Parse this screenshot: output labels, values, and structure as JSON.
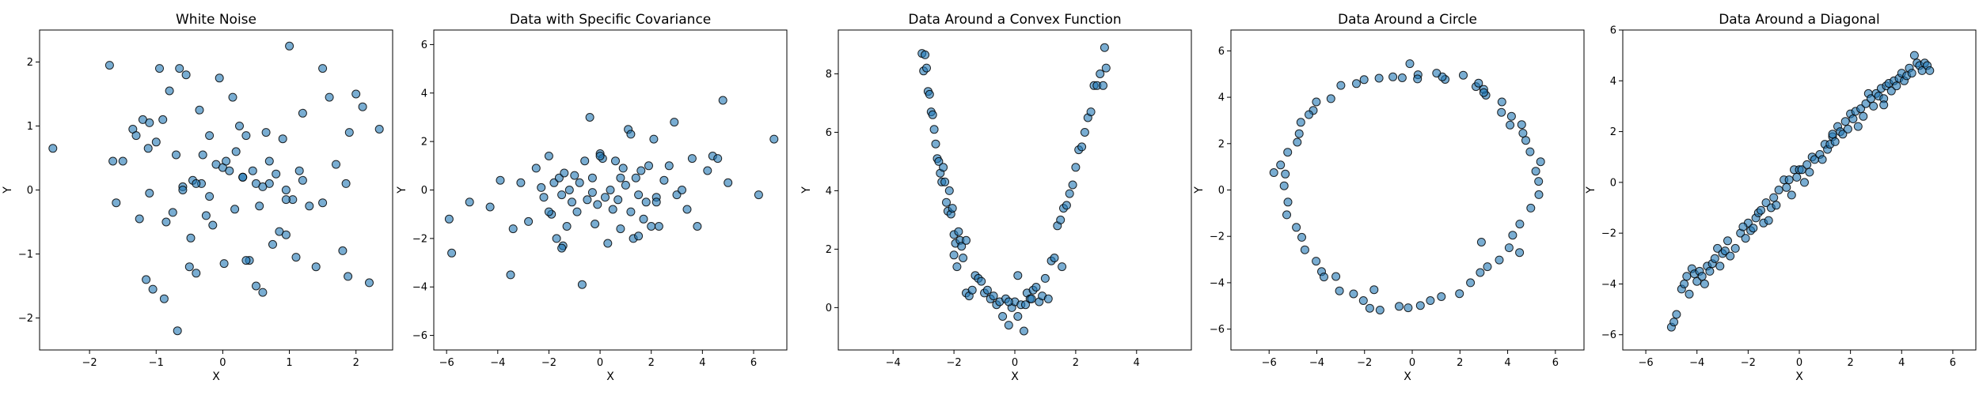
{
  "colors": {
    "marker_fill": "#1f77b4",
    "marker_edge": "#000000",
    "background": "#ffffff"
  },
  "chart_data": [
    {
      "type": "scatter",
      "title": "White Noise",
      "xlabel": "X",
      "ylabel": "Y",
      "xlim": [
        -2.75,
        2.55
      ],
      "ylim": [
        -2.5,
        2.5
      ],
      "xticks": [
        -2,
        -1,
        0,
        1,
        2
      ],
      "yticks": [
        -2,
        -1,
        0,
        1,
        2
      ],
      "x": [
        -2.55,
        -1.7,
        -1.65,
        -1.6,
        -1.5,
        -1.35,
        -1.3,
        -1.25,
        -1.2,
        -1.15,
        -1.12,
        -1.1,
        -1.05,
        -1.0,
        -0.95,
        -0.9,
        -0.88,
        -0.85,
        -0.8,
        -0.75,
        -0.7,
        -0.68,
        -0.65,
        -0.6,
        -0.55,
        -0.5,
        -0.48,
        -0.45,
        -0.4,
        -0.35,
        -0.32,
        -0.3,
        -0.25,
        -0.2,
        -0.15,
        -0.1,
        -0.05,
        0.0,
        0.02,
        0.05,
        0.1,
        0.15,
        0.18,
        0.2,
        0.25,
        0.3,
        0.35,
        0.4,
        0.45,
        0.5,
        0.55,
        0.6,
        0.65,
        0.7,
        0.75,
        0.8,
        0.85,
        0.9,
        0.95,
        1.0,
        1.05,
        1.1,
        1.15,
        1.2,
        1.3,
        1.4,
        1.5,
        1.6,
        1.7,
        1.8,
        1.9,
        2.0,
        2.1,
        2.2,
        2.35,
        0.95,
        1.88,
        1.2,
        0.5,
        -0.4,
        0.7,
        -1.1,
        0.35,
        1.5,
        -0.6,
        0.3,
        1.85,
        -0.2,
        0.95,
        0.6
      ],
      "y": [
        0.65,
        1.95,
        0.45,
        -0.2,
        0.45,
        0.95,
        0.85,
        -0.45,
        1.1,
        -1.4,
        0.65,
        1.05,
        -1.55,
        0.75,
        1.9,
        1.1,
        -1.7,
        -0.5,
        1.55,
        -0.35,
        0.55,
        -2.2,
        1.9,
        0.05,
        1.8,
        -1.2,
        -0.75,
        0.15,
        -1.3,
        1.25,
        0.1,
        0.55,
        -0.4,
        0.85,
        -0.55,
        0.4,
        1.75,
        0.35,
        -1.15,
        0.45,
        0.3,
        1.45,
        -0.3,
        0.6,
        1.0,
        0.2,
        0.85,
        -1.1,
        0.3,
        -1.5,
        -0.25,
        -1.6,
        0.9,
        0.1,
        -0.85,
        0.25,
        -0.65,
        0.8,
        0.0,
        2.25,
        -0.15,
        -1.05,
        0.3,
        1.2,
        -0.25,
        -1.2,
        1.9,
        1.45,
        0.4,
        -0.95,
        0.9,
        1.5,
        1.3,
        -1.45,
        0.95,
        -0.15,
        -1.35,
        0.15,
        0.1,
        0.1,
        0.45,
        -0.05,
        -1.1,
        -0.2,
        0.0,
        0.2,
        0.1,
        -0.1,
        -0.7,
        0.05
      ]
    },
    {
      "type": "scatter",
      "title": "Data with Specific Covariance",
      "xlabel": "X",
      "ylabel": "Y",
      "xlim": [
        -6.5,
        7.3
      ],
      "ylim": [
        -6.6,
        6.6
      ],
      "xticks": [
        -6,
        -4,
        -2,
        0,
        2,
        4,
        6
      ],
      "yticks": [
        -6,
        -4,
        -2,
        0,
        2,
        4,
        6
      ],
      "x": [
        -5.9,
        -5.8,
        -5.1,
        -4.3,
        -3.9,
        -3.5,
        -3.4,
        -3.1,
        -2.8,
        -2.5,
        -2.3,
        -2.2,
        -2.0,
        -1.9,
        -1.8,
        -1.7,
        -1.6,
        -1.5,
        -1.45,
        -1.4,
        -1.3,
        -1.2,
        -1.1,
        -1.0,
        -0.9,
        -0.8,
        -0.7,
        -0.6,
        -0.5,
        -0.4,
        -0.3,
        -0.2,
        -0.1,
        0.0,
        0.1,
        0.2,
        0.3,
        0.4,
        0.5,
        0.6,
        0.7,
        0.8,
        0.9,
        1.0,
        1.1,
        1.2,
        1.3,
        1.4,
        1.5,
        1.6,
        1.7,
        1.8,
        1.9,
        2.0,
        2.1,
        2.2,
        2.3,
        2.5,
        2.7,
        2.9,
        3.0,
        3.2,
        3.4,
        3.6,
        3.8,
        4.2,
        4.4,
        4.6,
        4.8,
        5.0,
        6.2,
        6.8,
        -1.5,
        0.0,
        1.2,
        2.2,
        -0.3,
        1.5,
        -2.0,
        0.8
      ],
      "y": [
        -1.2,
        -2.6,
        -0.5,
        -0.7,
        0.4,
        -3.5,
        -1.6,
        0.3,
        -1.3,
        0.9,
        0.1,
        -0.3,
        1.4,
        -1.0,
        0.3,
        -2.0,
        0.5,
        -0.2,
        -2.3,
        0.7,
        -1.5,
        0.0,
        -0.5,
        0.6,
        -0.9,
        0.3,
        -3.9,
        1.2,
        -0.4,
        3.0,
        0.5,
        -1.4,
        -0.6,
        1.5,
        1.3,
        -0.3,
        -2.2,
        0.0,
        -0.8,
        1.2,
        -0.4,
        -1.6,
        0.9,
        0.2,
        2.5,
        -0.9,
        -2.0,
        0.5,
        -0.2,
        0.8,
        -1.2,
        -0.5,
        1.0,
        -1.5,
        2.1,
        -0.3,
        -1.5,
        0.4,
        1.0,
        2.8,
        -0.2,
        0.0,
        -0.8,
        1.3,
        -1.5,
        0.8,
        1.4,
        1.3,
        3.7,
        0.3,
        -0.2,
        2.1,
        -2.4,
        1.4,
        2.3,
        -0.5,
        -0.1,
        -1.9,
        -0.9,
        0.5
      ]
    },
    {
      "type": "scatter",
      "title": "Data Around a Convex Function",
      "xlabel": "X",
      "ylabel": "Y",
      "xlim": [
        -5.8,
        5.8
      ],
      "ylim": [
        -1.45,
        9.5
      ],
      "xticks": [
        -4,
        -2,
        0,
        2,
        4
      ],
      "yticks": [
        0,
        2,
        4,
        6,
        8
      ],
      "x": [
        -3.05,
        -3.0,
        -2.95,
        -2.9,
        -2.85,
        -2.8,
        -2.75,
        -2.7,
        -2.65,
        -2.6,
        -2.55,
        -2.5,
        -2.45,
        -2.4,
        -2.35,
        -2.3,
        -2.25,
        -2.2,
        -2.15,
        -2.1,
        -2.05,
        -2.0,
        -1.95,
        -1.9,
        -1.85,
        -1.8,
        -1.75,
        -1.7,
        -1.6,
        -1.5,
        -1.4,
        -1.3,
        -1.2,
        -1.1,
        -1.0,
        -0.9,
        -0.8,
        -0.7,
        -0.6,
        -0.5,
        -0.4,
        -0.3,
        -0.2,
        -0.1,
        0.0,
        0.1,
        0.2,
        0.3,
        0.4,
        0.5,
        0.6,
        0.7,
        0.8,
        0.9,
        1.0,
        1.1,
        1.2,
        1.3,
        1.4,
        1.5,
        1.6,
        1.7,
        1.8,
        1.9,
        2.0,
        2.1,
        2.2,
        2.3,
        2.4,
        2.5,
        2.6,
        2.7,
        2.8,
        2.9,
        2.95,
        3.0,
        0.35,
        -0.2,
        0.1,
        -2.0,
        1.55,
        -1.6,
        0.55
      ],
      "y": [
        8.7,
        8.1,
        8.65,
        8.2,
        7.4,
        7.3,
        6.7,
        6.6,
        6.1,
        5.6,
        5.1,
        5.0,
        4.6,
        4.3,
        4.8,
        4.3,
        3.6,
        3.3,
        4.0,
        3.2,
        3.4,
        2.5,
        2.2,
        1.4,
        2.6,
        2.3,
        2.1,
        1.7,
        0.5,
        0.4,
        0.6,
        1.1,
        1.0,
        0.9,
        0.5,
        0.6,
        0.3,
        0.4,
        0.1,
        0.2,
        -0.3,
        0.3,
        -0.6,
        0.0,
        0.2,
        1.1,
        0.1,
        -0.8,
        0.5,
        0.3,
        0.6,
        0.7,
        0.2,
        0.4,
        1.0,
        0.3,
        1.6,
        1.7,
        2.8,
        3.0,
        3.4,
        3.5,
        3.9,
        4.2,
        4.8,
        5.4,
        5.5,
        6.0,
        6.5,
        6.7,
        7.6,
        7.6,
        8.0,
        7.6,
        8.9,
        8.2,
        0.1,
        0.2,
        -0.3,
        1.8,
        1.4,
        2.3,
        0.3
      ]
    },
    {
      "type": "scatter",
      "title": "Data Around a Circle",
      "xlabel": "X",
      "ylabel": "Y",
      "xlim": [
        -7.6,
        7.2
      ],
      "ylim": [
        -6.9,
        6.9
      ],
      "xticks": [
        -6,
        -4,
        -2,
        0,
        2,
        4,
        6
      ],
      "yticks": [
        -6,
        -4,
        -2,
        0,
        2,
        4,
        6
      ],
      "x": [
        5.3,
        5.18,
        5.38,
        4.94,
        4.76,
        4.64,
        4.59,
        4.16,
        3.74,
        3.76,
        3.09,
        3.0,
        2.67,
        2.78,
        2.14,
        1.38,
        1.26,
        1.02,
        0.24,
        0.22,
        -0.42,
        -0.81,
        -1.39,
        -2.02,
        -2.34,
        -2.99,
        -3.41,
        -4.02,
        -4.15,
        -4.33,
        -4.67,
        -4.74,
        -4.82,
        -5.22,
        -5.52,
        -5.32,
        -5.37,
        -5.21,
        -5.26,
        -4.86,
        -4.63,
        -4.5,
        -4.03,
        -3.8,
        -3.2,
        -3.05,
        -2.46,
        -2.05,
        -1.78,
        -1.35,
        -0.55,
        -0.17,
        0.34,
        0.76,
        1.22,
        1.98,
        2.44,
        2.85,
        3.15,
        3.65,
        4.06,
        4.21,
        4.51,
        4.97,
        5.31,
        -5.8,
        -0.1,
        4.5,
        2.9,
        -3.7,
        3.0,
        -1.6,
        4.1
      ],
      "y": [
        0.37,
        0.81,
        1.22,
        1.65,
        2.14,
        2.45,
        2.82,
        3.18,
        3.35,
        3.8,
        4.09,
        4.34,
        4.46,
        4.61,
        4.95,
        4.77,
        4.88,
        5.04,
        4.97,
        4.79,
        4.84,
        4.88,
        4.82,
        4.76,
        4.59,
        4.51,
        3.94,
        3.8,
        3.43,
        3.25,
        2.92,
        2.43,
        2.06,
        1.63,
        1.08,
        0.69,
        0.18,
        -0.52,
        -1.07,
        -1.61,
        -2.04,
        -2.58,
        -3.07,
        -3.52,
        -3.73,
        -4.35,
        -4.48,
        -4.77,
        -5.1,
        -5.18,
        -5.02,
        -5.08,
        -4.98,
        -4.77,
        -4.6,
        -4.47,
        -4.0,
        -3.56,
        -3.31,
        -3.02,
        -2.49,
        -1.95,
        -1.47,
        -0.78,
        -0.2,
        0.75,
        5.45,
        -2.7,
        -2.25,
        -3.75,
        4.2,
        -4.3,
        2.8
      ]
    },
    {
      "type": "scatter",
      "title": "Data Around a Diagonal",
      "xlabel": "X",
      "ylabel": "Y",
      "xlim": [
        -6.9,
        6.9
      ],
      "ylim": [
        -6.6,
        6.0
      ],
      "xticks": [
        -6,
        -4,
        -2,
        0,
        2,
        4,
        6
      ],
      "yticks": [
        -6,
        -4,
        -2,
        0,
        2,
        4,
        6
      ],
      "x": [
        -5.0,
        -4.9,
        -4.8,
        -4.6,
        -4.5,
        -4.4,
        -4.3,
        -4.2,
        -4.1,
        -4.0,
        -3.9,
        -3.8,
        -3.7,
        -3.6,
        -3.5,
        -3.4,
        -3.3,
        -3.2,
        -3.1,
        -3.0,
        -2.9,
        -2.8,
        -2.7,
        -2.5,
        -2.3,
        -2.1,
        -2.0,
        -1.9,
        -1.8,
        -1.7,
        -1.6,
        -1.5,
        -1.4,
        -1.3,
        -1.2,
        -1.1,
        -1.0,
        -0.9,
        -0.8,
        -0.6,
        -0.5,
        -0.4,
        -0.3,
        -0.2,
        -0.1,
        0.0,
        0.1,
        0.2,
        0.3,
        0.4,
        0.5,
        0.6,
        0.8,
        0.9,
        1.0,
        1.1,
        1.2,
        1.3,
        1.4,
        1.5,
        1.6,
        1.7,
        1.8,
        1.9,
        2.0,
        2.1,
        2.2,
        2.3,
        2.4,
        2.5,
        2.6,
        2.7,
        2.8,
        2.9,
        3.0,
        3.1,
        3.2,
        3.3,
        3.4,
        3.5,
        3.6,
        3.7,
        3.8,
        3.9,
        4.0,
        4.1,
        4.2,
        4.3,
        4.4,
        4.5,
        4.6,
        4.7,
        4.8,
        4.9,
        5.0,
        5.1,
        -2.2,
        1.3,
        3.3
      ],
      "y": [
        -5.7,
        -5.5,
        -5.2,
        -4.2,
        -4.0,
        -3.7,
        -4.4,
        -3.4,
        -3.6,
        -3.9,
        -3.5,
        -3.7,
        -4.0,
        -3.3,
        -3.5,
        -3.2,
        -3.0,
        -2.6,
        -3.3,
        -2.8,
        -2.7,
        -2.3,
        -2.9,
        -2.6,
        -2.0,
        -2.2,
        -1.6,
        -1.9,
        -1.8,
        -1.4,
        -1.2,
        -1.1,
        -1.6,
        -0.8,
        -1.5,
        -1.0,
        -0.6,
        -0.9,
        -0.3,
        0.1,
        -0.2,
        0.1,
        -0.5,
        0.5,
        0.2,
        0.5,
        0.5,
        0.0,
        0.7,
        0.4,
        1.0,
        0.9,
        1.1,
        0.9,
        1.5,
        1.3,
        1.5,
        1.8,
        1.6,
        2.2,
        2.0,
        1.9,
        2.4,
        2.1,
        2.7,
        2.5,
        2.8,
        2.2,
        2.9,
        2.6,
        3.1,
        3.5,
        3.3,
        3.0,
        3.5,
        3.4,
        3.7,
        3.3,
        3.8,
        3.9,
        3.6,
        4.0,
        3.8,
        4.1,
        4.3,
        4.0,
        4.2,
        4.5,
        4.3,
        5.0,
        4.7,
        4.6,
        4.4,
        4.7,
        4.6,
        4.4,
        -1.75,
        1.9,
        3.05
      ]
    }
  ]
}
